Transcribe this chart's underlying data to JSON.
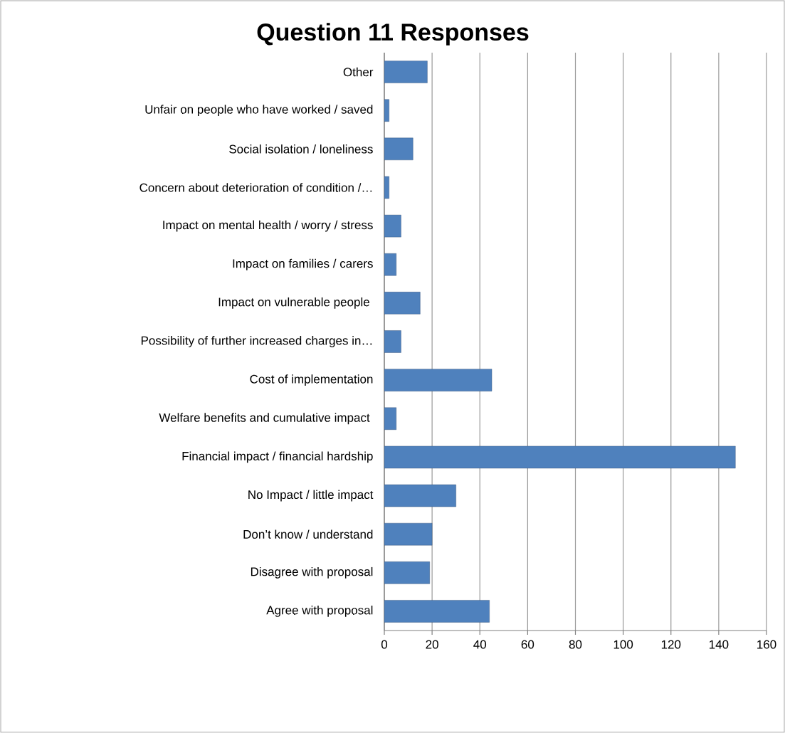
{
  "chart_data": {
    "type": "bar",
    "orientation": "horizontal",
    "title": "Question 11 Responses",
    "categories": [
      "Other",
      "Unfair on people who have worked / saved",
      "Social isolation / loneliness",
      "Concern about deterioration of condition /…",
      "Impact on mental health / worry / stress",
      "Impact on families / carers",
      "Impact on vulnerable people ",
      "Possibility of further increased charges in…",
      "Cost of implementation",
      "Welfare benefits and cumulative impact ",
      "Financial impact / financial hardship",
      "No Impact / little impact",
      "Don’t know / understand",
      "Disagree with proposal",
      "Agree with proposal"
    ],
    "values": [
      18,
      2,
      12,
      2,
      7,
      5,
      15,
      7,
      45,
      5,
      147,
      30,
      20,
      19,
      44
    ],
    "color": "#4f81bd",
    "xlim": [
      0,
      160
    ],
    "xticks": [
      0,
      20,
      40,
      60,
      80,
      100,
      120,
      140,
      160
    ],
    "grid": "x"
  }
}
